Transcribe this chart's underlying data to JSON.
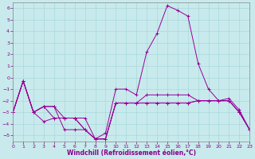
{
  "xlabel": "Windchill (Refroidissement éolien,°C)",
  "bg_color": "#c8eaec",
  "grid_color": "#a8d8da",
  "line_color": "#990099",
  "xlim": [
    0,
    23
  ],
  "ylim": [
    -5.5,
    6.5
  ],
  "x_ticks": [
    0,
    1,
    2,
    3,
    4,
    5,
    6,
    7,
    8,
    9,
    10,
    11,
    12,
    13,
    14,
    15,
    16,
    17,
    18,
    19,
    20,
    21,
    22,
    23
  ],
  "y_ticks": [
    -5,
    -4,
    -3,
    -2,
    -1,
    0,
    1,
    2,
    3,
    4,
    5,
    6
  ],
  "series": [
    [
      -3.0,
      -0.3,
      -3.0,
      -2.5,
      -2.5,
      -4.5,
      -4.5,
      -4.5,
      -5.3,
      -4.8,
      -1.0,
      -1.0,
      -1.5,
      2.2,
      3.8,
      6.2,
      5.8,
      5.3,
      1.2,
      -1.0,
      -2.0,
      -1.8,
      -2.8,
      -4.5
    ],
    [
      -3.0,
      -0.3,
      -3.0,
      -2.5,
      -3.5,
      -3.5,
      -3.5,
      -4.5,
      -5.3,
      -5.3,
      -2.2,
      -2.2,
      -2.2,
      -1.5,
      -1.5,
      -1.5,
      -1.5,
      -1.5,
      -2.0,
      -2.0,
      -2.0,
      -2.0,
      -3.0,
      -4.5
    ],
    [
      -3.0,
      -0.3,
      -3.0,
      -2.5,
      -2.5,
      -3.5,
      -3.5,
      -3.5,
      -5.3,
      -5.3,
      -2.2,
      -2.2,
      -2.2,
      -2.2,
      -2.2,
      -2.2,
      -2.2,
      -2.2,
      -2.0,
      -2.0,
      -2.0,
      -2.0,
      -3.0,
      -4.5
    ],
    [
      -3.0,
      -0.3,
      -3.0,
      -3.8,
      -3.5,
      -3.5,
      -3.5,
      -4.5,
      -5.3,
      -5.3,
      -2.2,
      -2.2,
      -2.2,
      -2.2,
      -2.2,
      -2.2,
      -2.2,
      -2.2,
      -2.0,
      -2.0,
      -2.0,
      -2.0,
      -3.0,
      -4.5
    ]
  ]
}
